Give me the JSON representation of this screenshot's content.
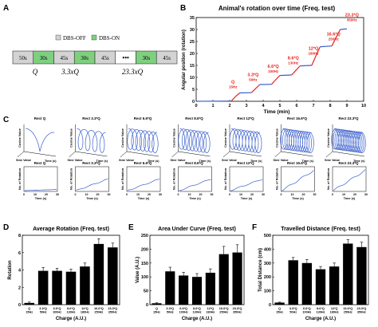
{
  "panel_letters": {
    "a": "A",
    "b": "B",
    "c": "C",
    "d": "D",
    "e": "E",
    "f": "F"
  },
  "protocol": {
    "legend_off": "DBS-OFF",
    "legend_on": "DBS-ON",
    "blocks": [
      {
        "label": "50s",
        "state": "off"
      },
      {
        "label": "30s",
        "state": "on"
      },
      {
        "label": "45s",
        "state": "off"
      },
      {
        "label": "30s",
        "state": "on"
      },
      {
        "label": "45s",
        "state": "off"
      },
      {
        "label": "•••",
        "state": "dots"
      },
      {
        "label": "30s",
        "state": "on"
      },
      {
        "label": "45s",
        "state": "off"
      }
    ],
    "labels": [
      "Q",
      "3.3xQ",
      "23.3xQ"
    ],
    "colors": {
      "off": "#d3d3d3",
      "on": "#7ed07e",
      "border": "#333333"
    }
  },
  "chart_data": [
    {
      "id": "B",
      "type": "line",
      "title": "Animal's rotation over time (Freq. test)",
      "xlabel": "Time (min)",
      "ylabel": "Angular position (rotation)",
      "xlim": [
        0,
        10
      ],
      "ylim": [
        0,
        35
      ],
      "xticks": [
        "0",
        "1",
        "2",
        "3",
        "4",
        "5",
        "6",
        "7",
        "8",
        "9",
        "10"
      ],
      "yticks": [
        "0",
        "5",
        "10",
        "15",
        "20",
        "25",
        "30",
        "35"
      ],
      "stim_color": "#e8231f",
      "rest_color": "#3a5fcd",
      "rest_segments": [
        [
          [
            0,
            0
          ],
          [
            2.1,
            0.1
          ]
        ],
        [
          [
            2.6,
            3.5
          ],
          [
            3.3,
            3.6
          ]
        ],
        [
          [
            3.8,
            7.0
          ],
          [
            4.5,
            7.1
          ]
        ],
        [
          [
            5.0,
            10.8
          ],
          [
            5.7,
            11.0
          ]
        ],
        [
          [
            6.2,
            14.8
          ],
          [
            6.9,
            15.0
          ]
        ],
        [
          [
            7.4,
            22.8
          ],
          [
            8.1,
            23.1
          ]
        ],
        [
          [
            8.6,
            30.0
          ],
          [
            9.0,
            30.3
          ]
        ]
      ],
      "stim_segments": [
        [
          [
            2.1,
            0.1
          ],
          [
            2.35,
            2.0
          ],
          [
            2.6,
            3.5
          ]
        ],
        [
          [
            3.3,
            3.6
          ],
          [
            3.55,
            5.3
          ],
          [
            3.8,
            7.0
          ]
        ],
        [
          [
            4.5,
            7.1
          ],
          [
            4.75,
            9.0
          ],
          [
            5.0,
            10.8
          ]
        ],
        [
          [
            5.7,
            11.0
          ],
          [
            5.95,
            12.9
          ],
          [
            6.2,
            14.8
          ]
        ],
        [
          [
            6.9,
            15.0
          ],
          [
            7.15,
            19.0
          ],
          [
            7.4,
            22.8
          ]
        ],
        [
          [
            8.1,
            23.1
          ],
          [
            8.35,
            26.6
          ],
          [
            8.6,
            30.0
          ]
        ]
      ],
      "annotations": [
        {
          "line1": "Q",
          "line2": "15Hz",
          "x": 2.2,
          "y": 7.5
        },
        {
          "line1": "3.3*Q",
          "line2": "50Hz",
          "x": 3.4,
          "y": 10.5
        },
        {
          "line1": "6.6*Q",
          "line2": "100Hz",
          "x": 4.6,
          "y": 14.0
        },
        {
          "line1": "8.6*Q",
          "line2": "130Hz",
          "x": 5.8,
          "y": 17.5
        },
        {
          "line1": "12*Q",
          "line2": "180Hz",
          "x": 7.0,
          "y": 21.5
        },
        {
          "line1": "16.6*Q",
          "line2": "250Hz",
          "x": 8.2,
          "y": 27.5
        },
        {
          "line1": "23.3*Q",
          "line2": "350Hz",
          "x": 9.3,
          "y": 35.5
        }
      ]
    },
    {
      "id": "D",
      "type": "bar",
      "title": "Average Rotation (Freq. test)",
      "xlabel": "Charge (A.U.)",
      "ylabel": "Rotation",
      "ylim": [
        0,
        8
      ],
      "yticks": [
        "0",
        "2",
        "4",
        "6",
        "8"
      ],
      "categories": [
        [
          "Q",
          "15Hz"
        ],
        [
          "3.3*Q",
          "50Hz"
        ],
        [
          "6.6*Q",
          "100Hz"
        ],
        [
          "8.6*Q",
          "130Hz"
        ],
        [
          "12*Q",
          "180Hz"
        ],
        [
          "16.6*Q",
          "250Hz"
        ],
        [
          "23.3*Q",
          "350Hz"
        ]
      ],
      "values": [
        0.2,
        3.9,
        3.9,
        3.8,
        4.4,
        7.0,
        6.6
      ],
      "errors": [
        0.1,
        0.4,
        0.3,
        0.3,
        0.4,
        0.6,
        0.5
      ]
    },
    {
      "id": "E",
      "type": "bar",
      "title": "Area Under Curve (Freq. test)",
      "xlabel": "Charge (A.U.)",
      "ylabel": "Value (A.U.)",
      "ylim": [
        0,
        250
      ],
      "yticks": [
        "0",
        "50",
        "100",
        "150",
        "200",
        "250"
      ],
      "categories": [
        [
          "Q",
          "15Hz"
        ],
        [
          "3.3*Q",
          "50Hz"
        ],
        [
          "6.6*Q",
          "100Hz"
        ],
        [
          "8.6*Q",
          "130Hz"
        ],
        [
          "12*Q",
          "180Hz"
        ],
        [
          "16.6*Q",
          "250Hz"
        ],
        [
          "23.3*Q",
          "350Hz"
        ]
      ],
      "values": [
        5,
        120,
        105,
        100,
        115,
        182,
        188
      ],
      "errors": [
        2,
        15,
        12,
        12,
        14,
        28,
        28
      ]
    },
    {
      "id": "F",
      "type": "bar",
      "title": "Travelled Distance (Freq. test)",
      "xlabel": "Charge (A.U.)",
      "ylabel": "Total Distance (cm)",
      "ylim": [
        0,
        500
      ],
      "yticks": [
        "0",
        "100",
        "200",
        "300",
        "400",
        "500"
      ],
      "categories": [
        [
          "Q",
          "15Hz"
        ],
        [
          "3.3*Q",
          "50Hz"
        ],
        [
          "6.6*Q",
          "100Hz"
        ],
        [
          "8.6*Q",
          "130Hz"
        ],
        [
          "12*Q",
          "180Hz"
        ],
        [
          "16.6*Q",
          "250Hz"
        ],
        [
          "23.3*Q",
          "350Hz"
        ]
      ],
      "values": [
        15,
        320,
        300,
        255,
        275,
        440,
        415
      ],
      "errors": [
        3,
        20,
        25,
        20,
        25,
        30,
        35
      ]
    }
  ],
  "panel_c": {
    "line_color": "#3a5fcd",
    "turns": [
      1,
      4,
      7,
      8,
      9,
      13,
      17
    ],
    "rotation_end": [
      0.4,
      4,
      4,
      4,
      4,
      7,
      7
    ],
    "top_titles": [
      "Rect Q",
      "Rect 3.3*Q",
      "Rect 6.6*Q",
      "Rect 8.6*Q",
      "Rect 12*Q",
      "Rect 16.6*Q",
      "Rect 23.3*Q"
    ],
    "bottom_titles": [
      "Rect Q",
      "Rect 3.3*Q",
      "Rect 6.6*Q",
      "Rect 8.6*Q",
      "Rect 12*Q",
      "Rect 16.6*Q",
      "Rect 23.3*Q"
    ],
    "axis_cosine": "Cosine Value",
    "axis_sine": "Sine Value",
    "axis_time": "Time (s)",
    "axis_rotation": "No. of Rotation",
    "time_ticks": [
      "0",
      "10",
      "20",
      "30"
    ]
  }
}
